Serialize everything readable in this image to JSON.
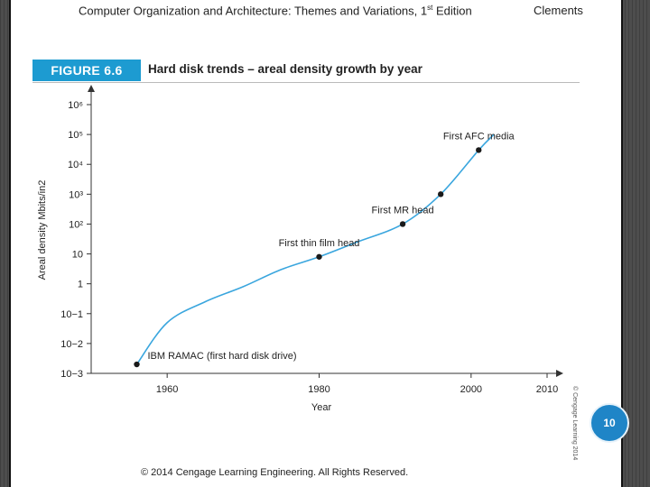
{
  "header": {
    "title_main": "Computer Organization and Architecture: Themes and Variations, 1",
    "title_sup": "st",
    "title_tail": " Edition",
    "author": "Clements"
  },
  "figure": {
    "badge": "FIGURE 6.6",
    "title": "Hard disk trends – areal density growth by year",
    "copyright_vertical": "© Cengage Learning 2014"
  },
  "chart_data": {
    "type": "line",
    "title": "Hard disk trends – areal density growth by year",
    "xlabel": "Year",
    "ylabel": "Areal density Mbits/in2",
    "xlim": [
      1950,
      2010
    ],
    "ylim_log10": [
      -3,
      6
    ],
    "y_scale": "log",
    "x_ticks": [
      1960,
      1980,
      2000,
      2010
    ],
    "y_ticks": [
      "10−3",
      "10−2",
      "10−1",
      "1",
      "10",
      "10²",
      "10³",
      "10⁴",
      "10⁵",
      "10⁶"
    ],
    "series": [
      {
        "x": [
          1956,
          1960,
          1965,
          1970,
          1975,
          1980,
          1985,
          1991,
          1996,
          2001,
          2003
        ],
        "y": [
          0.002,
          0.05,
          0.25,
          0.8,
          3,
          8,
          25,
          100,
          1000,
          30000,
          100000
        ]
      }
    ],
    "annotations": [
      {
        "label": "IBM RAMAC (first hard disk drive)",
        "x": 1956,
        "y": 0.002
      },
      {
        "label": "First thin film head",
        "x": 1980,
        "y": 8
      },
      {
        "label": "First MR head",
        "x": 1991,
        "y": 100
      },
      {
        "label": "",
        "x": 1996,
        "y": 1000
      },
      {
        "label": "First AFC media",
        "x": 2001,
        "y": 30000
      }
    ],
    "grid": false
  },
  "page_number": "10",
  "footer": "© 2014 Cengage Learning Engineering. All Rights Reserved."
}
